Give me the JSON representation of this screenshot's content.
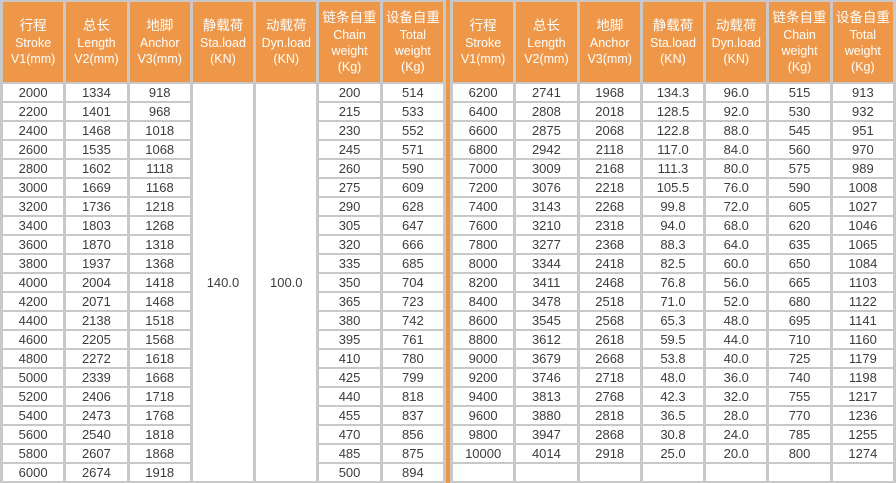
{
  "colors": {
    "accent_orange": "#ef9749",
    "grid_gray": "#c8c8c8",
    "cell_background": "#ffffff",
    "header_text": "#ffffff",
    "cell_text": "#3c3c3c"
  },
  "header_columns": [
    {
      "name": "stroke",
      "lines": [
        "行程",
        "Stroke",
        "V1(mm)"
      ]
    },
    {
      "name": "length",
      "lines": [
        "总长",
        "Length",
        "V2(mm)"
      ]
    },
    {
      "name": "anchor",
      "lines": [
        "地脚",
        "Anchor",
        "V3(mm)"
      ]
    },
    {
      "name": "static-load",
      "lines": [
        "静载荷",
        "Sta.load",
        "(KN)"
      ]
    },
    {
      "name": "dynamic-load",
      "lines": [
        "动载荷",
        "Dyn.load",
        "(KN)"
      ]
    },
    {
      "name": "chain-weight",
      "lines": [
        "链条自重",
        "Chain",
        "weight",
        "(Kg)"
      ]
    },
    {
      "name": "total-weight",
      "lines": [
        "设备自重",
        "Total",
        "weight",
        "(Kg)"
      ]
    }
  ],
  "left_section": {
    "static_load_merged": "140.0",
    "dynamic_load_merged": "100.0",
    "rows": [
      [
        "2000",
        "1334",
        "918",
        "200",
        "514"
      ],
      [
        "2200",
        "1401",
        "968",
        "215",
        "533"
      ],
      [
        "2400",
        "1468",
        "1018",
        "230",
        "552"
      ],
      [
        "2600",
        "1535",
        "1068",
        "245",
        "571"
      ],
      [
        "2800",
        "1602",
        "1118",
        "260",
        "590"
      ],
      [
        "3000",
        "1669",
        "1168",
        "275",
        "609"
      ],
      [
        "3200",
        "1736",
        "1218",
        "290",
        "628"
      ],
      [
        "3400",
        "1803",
        "1268",
        "305",
        "647"
      ],
      [
        "3600",
        "1870",
        "1318",
        "320",
        "666"
      ],
      [
        "3800",
        "1937",
        "1368",
        "335",
        "685"
      ],
      [
        "4000",
        "2004",
        "1418",
        "350",
        "704"
      ],
      [
        "4200",
        "2071",
        "1468",
        "365",
        "723"
      ],
      [
        "4400",
        "2138",
        "1518",
        "380",
        "742"
      ],
      [
        "4600",
        "2205",
        "1568",
        "395",
        "761"
      ],
      [
        "4800",
        "2272",
        "1618",
        "410",
        "780"
      ],
      [
        "5000",
        "2339",
        "1668",
        "425",
        "799"
      ],
      [
        "5200",
        "2406",
        "1718",
        "440",
        "818"
      ],
      [
        "5400",
        "2473",
        "1768",
        "455",
        "837"
      ],
      [
        "5600",
        "2540",
        "1818",
        "470",
        "856"
      ],
      [
        "5800",
        "2607",
        "1868",
        "485",
        "875"
      ],
      [
        "6000",
        "2674",
        "1918",
        "500",
        "894"
      ]
    ]
  },
  "right_section": {
    "rows": [
      [
        "6200",
        "2741",
        "1968",
        "134.3",
        "96.0",
        "515",
        "913"
      ],
      [
        "6400",
        "2808",
        "2018",
        "128.5",
        "92.0",
        "530",
        "932"
      ],
      [
        "6600",
        "2875",
        "2068",
        "122.8",
        "88.0",
        "545",
        "951"
      ],
      [
        "6800",
        "2942",
        "2118",
        "117.0",
        "84.0",
        "560",
        "970"
      ],
      [
        "7000",
        "3009",
        "2168",
        "111.3",
        "80.0",
        "575",
        "989"
      ],
      [
        "7200",
        "3076",
        "2218",
        "105.5",
        "76.0",
        "590",
        "1008"
      ],
      [
        "7400",
        "3143",
        "2268",
        "99.8",
        "72.0",
        "605",
        "1027"
      ],
      [
        "7600",
        "3210",
        "2318",
        "94.0",
        "68.0",
        "620",
        "1046"
      ],
      [
        "7800",
        "3277",
        "2368",
        "88.3",
        "64.0",
        "635",
        "1065"
      ],
      [
        "8000",
        "3344",
        "2418",
        "82.5",
        "60.0",
        "650",
        "1084"
      ],
      [
        "8200",
        "3411",
        "2468",
        "76.8",
        "56.0",
        "665",
        "1103"
      ],
      [
        "8400",
        "3478",
        "2518",
        "71.0",
        "52.0",
        "680",
        "1122"
      ],
      [
        "8600",
        "3545",
        "2568",
        "65.3",
        "48.0",
        "695",
        "1141"
      ],
      [
        "8800",
        "3612",
        "2618",
        "59.5",
        "44.0",
        "710",
        "1160"
      ],
      [
        "9000",
        "3679",
        "2668",
        "53.8",
        "40.0",
        "725",
        "1179"
      ],
      [
        "9200",
        "3746",
        "2718",
        "48.0",
        "36.0",
        "740",
        "1198"
      ],
      [
        "9400",
        "3813",
        "2768",
        "42.3",
        "32.0",
        "755",
        "1217"
      ],
      [
        "9600",
        "3880",
        "2818",
        "36.5",
        "28.0",
        "770",
        "1236"
      ],
      [
        "9800",
        "3947",
        "2868",
        "30.8",
        "24.0",
        "785",
        "1255"
      ],
      [
        "10000",
        "4014",
        "2918",
        "25.0",
        "20.0",
        "800",
        "1274"
      ]
    ],
    "trailing_empty_row": [
      "",
      "",
      "",
      "",
      "",
      "",
      ""
    ]
  }
}
